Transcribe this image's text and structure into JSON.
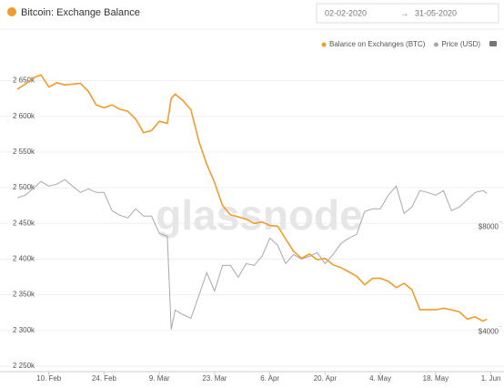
{
  "date_range": {
    "from": "02-02-2020",
    "to": "31-05-2020"
  },
  "chart_data": {
    "type": "line",
    "title": "Bitcoin: Exchange Balance",
    "watermark": "glassnode",
    "x": [
      "2020-02-02",
      "2020-02-04",
      "2020-02-06",
      "2020-02-08",
      "2020-02-10",
      "2020-02-12",
      "2020-02-14",
      "2020-02-16",
      "2020-02-18",
      "2020-02-20",
      "2020-02-22",
      "2020-02-24",
      "2020-02-26",
      "2020-02-28",
      "2020-03-01",
      "2020-03-03",
      "2020-03-05",
      "2020-03-07",
      "2020-03-09",
      "2020-03-11",
      "2020-03-12",
      "2020-03-13",
      "2020-03-15",
      "2020-03-17",
      "2020-03-19",
      "2020-03-21",
      "2020-03-23",
      "2020-03-25",
      "2020-03-27",
      "2020-03-29",
      "2020-03-31",
      "2020-04-02",
      "2020-04-04",
      "2020-04-06",
      "2020-04-08",
      "2020-04-10",
      "2020-04-12",
      "2020-04-14",
      "2020-04-16",
      "2020-04-18",
      "2020-04-20",
      "2020-04-22",
      "2020-04-24",
      "2020-04-26",
      "2020-04-28",
      "2020-04-30",
      "2020-05-02",
      "2020-05-04",
      "2020-05-06",
      "2020-05-08",
      "2020-05-10",
      "2020-05-12",
      "2020-05-14",
      "2020-05-16",
      "2020-05-18",
      "2020-05-20",
      "2020-05-22",
      "2020-05-24",
      "2020-05-26",
      "2020-05-28",
      "2020-05-30",
      "2020-05-31"
    ],
    "series": [
      {
        "name": "Balance on Exchanges (BTC)",
        "color": "#f29c2b",
        "axis": "y",
        "values": [
          2638000,
          2645000,
          2654000,
          2658000,
          2641000,
          2647000,
          2644000,
          2645000,
          2646000,
          2635000,
          2616000,
          2612000,
          2616000,
          2610000,
          2607000,
          2596000,
          2577000,
          2580000,
          2593000,
          2590000,
          2625000,
          2631000,
          2622000,
          2609000,
          2565000,
          2533000,
          2507000,
          2475000,
          2462000,
          2459000,
          2456000,
          2450000,
          2452000,
          2447000,
          2446000,
          2428000,
          2411000,
          2401000,
          2407000,
          2399000,
          2401000,
          2392000,
          2388000,
          2382000,
          2376000,
          2364000,
          2373000,
          2373000,
          2369000,
          2360000,
          2366000,
          2357000,
          2329000,
          2329000,
          2329000,
          2331000,
          2329000,
          2326000,
          2316000,
          2319000,
          2313000,
          2316000
        ]
      },
      {
        "name": "Price (USD)",
        "color": "#a9a6b3",
        "axis": "y2",
        "values": [
          9113,
          9217,
          9461,
          9739,
          9565,
          9635,
          9809,
          9565,
          9322,
          9461,
          9322,
          9322,
          8626,
          8452,
          8348,
          8696,
          8417,
          8417,
          7757,
          7652,
          4104,
          4835,
          4661,
          4522,
          5391,
          6261,
          5565,
          6539,
          6539,
          6087,
          6609,
          6539,
          6887,
          7583,
          7304,
          6609,
          6957,
          6783,
          6887,
          7026,
          6609,
          6957,
          7374,
          7583,
          7722,
          8591,
          8696,
          8696,
          9217,
          9565,
          8522,
          8765,
          9391,
          9322,
          9217,
          9391,
          8626,
          8765,
          9043,
          9322,
          9391,
          9287
        ]
      }
    ],
    "xlim": [
      "2020-02-02",
      "2020-06-01"
    ],
    "xticks": [
      {
        "value": "2020-02-10",
        "label": "10. Feb"
      },
      {
        "value": "2020-02-24",
        "label": "24. Feb"
      },
      {
        "value": "2020-03-09",
        "label": "9. Mar"
      },
      {
        "value": "2020-03-23",
        "label": "23. Mar"
      },
      {
        "value": "2020-04-06",
        "label": "6. Apr"
      },
      {
        "value": "2020-04-20",
        "label": "20. Apr"
      },
      {
        "value": "2020-05-04",
        "label": "4. May"
      },
      {
        "value": "2020-05-18",
        "label": "18. May"
      },
      {
        "value": "2020-06-01",
        "label": "1. Jun"
      }
    ],
    "ylim": [
      2250000,
      2680000
    ],
    "yticks": [
      {
        "value": 2250000,
        "label": "2 250k"
      },
      {
        "value": 2300000,
        "label": "2 300k"
      },
      {
        "value": 2350000,
        "label": "2 350k"
      },
      {
        "value": 2400000,
        "label": "2 400k"
      },
      {
        "value": 2450000,
        "label": "2 450k"
      },
      {
        "value": 2500000,
        "label": "2 500k"
      },
      {
        "value": 2550000,
        "label": "2 550k"
      },
      {
        "value": 2600000,
        "label": "2 600k"
      },
      {
        "value": 2650000,
        "label": "2 650k"
      }
    ],
    "y2lim": [
      2700,
      14400
    ],
    "y2ticks": [
      {
        "value": 4000,
        "label": "$4000"
      },
      {
        "value": 8000,
        "label": "$8000"
      }
    ],
    "grid": true
  }
}
